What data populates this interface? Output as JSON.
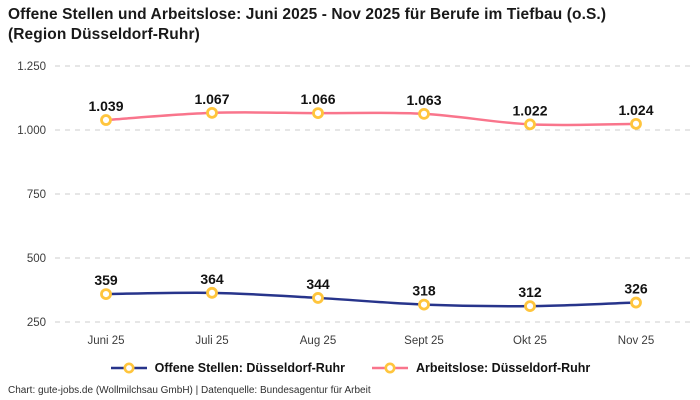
{
  "header": {
    "title_line1": "Offene Stellen und Arbeitslose: Juni 2025 - Nov 2025 für Berufe im Tiefbau (o.S.)",
    "title_line2": "(Region Düsseldorf-Ruhr)"
  },
  "chart_data": {
    "type": "line",
    "title": "Offene Stellen und Arbeitslose: Juni 2025 - Nov 2025 für Berufe im Tiefbau (o.S.) (Region Düsseldorf-Ruhr)",
    "categories": [
      "Juni 25",
      "Juli 25",
      "Aug 25",
      "Sept 25",
      "Okt 25",
      "Nov 25"
    ],
    "series": [
      {
        "name": "Offene Stellen: Düsseldorf-Ruhr",
        "values": [
          359,
          364,
          344,
          318,
          312,
          326
        ],
        "labels": [
          "359",
          "364",
          "344",
          "318",
          "312",
          "326"
        ],
        "color": "#27348b"
      },
      {
        "name": "Arbeitslose: Düsseldorf-Ruhr",
        "values": [
          1039,
          1067,
          1066,
          1063,
          1022,
          1024
        ],
        "labels": [
          "1.039",
          "1.067",
          "1.066",
          "1.063",
          "1.022",
          "1.024"
        ],
        "color": "#f9758c"
      }
    ],
    "marker": {
      "stroke": "#ffc53d",
      "fill": "#ffffff"
    },
    "yticks": [
      250,
      500,
      750,
      1000,
      1250
    ],
    "ytick_labels": [
      "250",
      "500",
      "750",
      "1.000",
      "1.250"
    ],
    "ylim": [
      250,
      1250
    ],
    "grid": "dashed-horizontal",
    "grid_color": "#cccccc",
    "tick_color": "#3c3c3c",
    "data_label_color": "#121212",
    "legend_position": "bottom",
    "xlabel": "",
    "ylabel": ""
  },
  "footer": {
    "credit": "Chart: gute-jobs.de (Wollmilchsau GmbH) | Datenquelle: Bundesagentur für Arbeit"
  }
}
